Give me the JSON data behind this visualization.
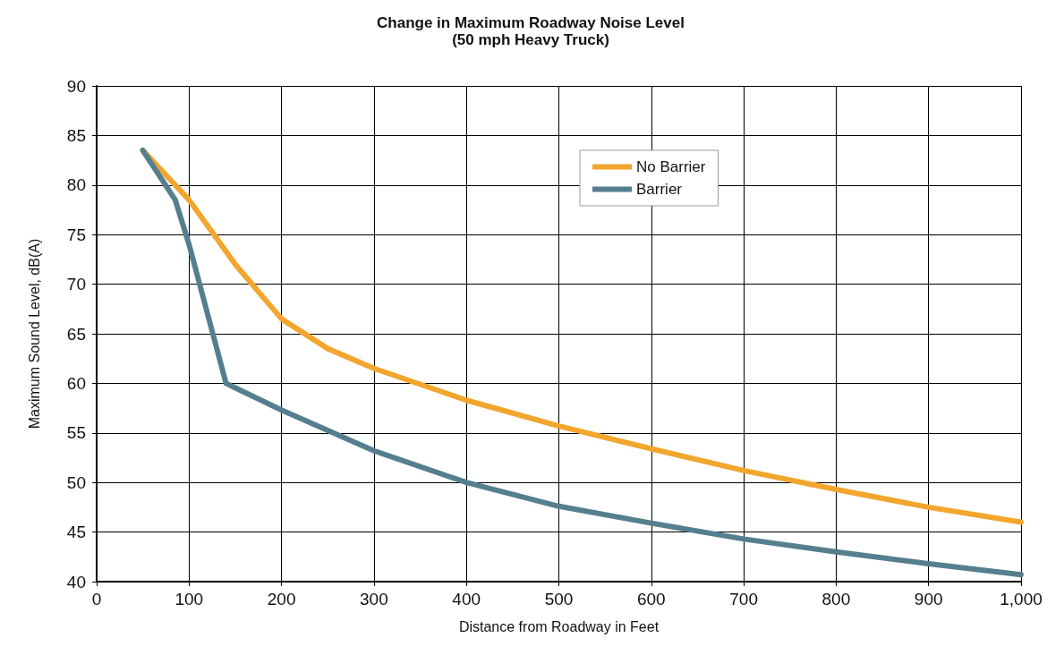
{
  "chart_data": {
    "type": "line",
    "title": "Change in Maximum Roadway Noise Level",
    "subtitle": "(50 mph Heavy Truck)",
    "xlabel": "Distance from Roadway in Feet",
    "ylabel": "Maximum Sound Level, dB(A)",
    "xlim": [
      0,
      1000
    ],
    "xticks": [
      0,
      100,
      200,
      300,
      400,
      500,
      600,
      700,
      800,
      900,
      {
        "value": 1000,
        "label": "1,000"
      }
    ],
    "ylim": [
      40,
      90
    ],
    "yticks": [
      40,
      45,
      50,
      55,
      60,
      65,
      70,
      75,
      80,
      85,
      90
    ],
    "grid": true,
    "legend": "top right",
    "marker": "none",
    "line_style": "solid",
    "series": [
      {
        "name": "No Barrier",
        "color": "#f2a62e",
        "x": [
          50,
          100,
          150,
          200,
          250,
          300,
          400,
          500,
          600,
          700,
          800,
          900,
          1000
        ],
        "values": [
          83.5,
          78.5,
          72,
          66.5,
          63.5,
          61.5,
          58.3,
          55.7,
          53.4,
          51.2,
          49.3,
          47.5,
          46
        ]
      },
      {
        "name": "Barrier",
        "color": "#557f8f",
        "x": [
          50,
          85,
          100,
          140,
          200,
          300,
          400,
          500,
          600,
          700,
          800,
          900,
          1000
        ],
        "values": [
          83.5,
          78.5,
          74,
          60,
          57.3,
          53.2,
          50,
          47.6,
          45.9,
          44.3,
          43,
          41.8,
          40.7
        ]
      }
    ]
  }
}
